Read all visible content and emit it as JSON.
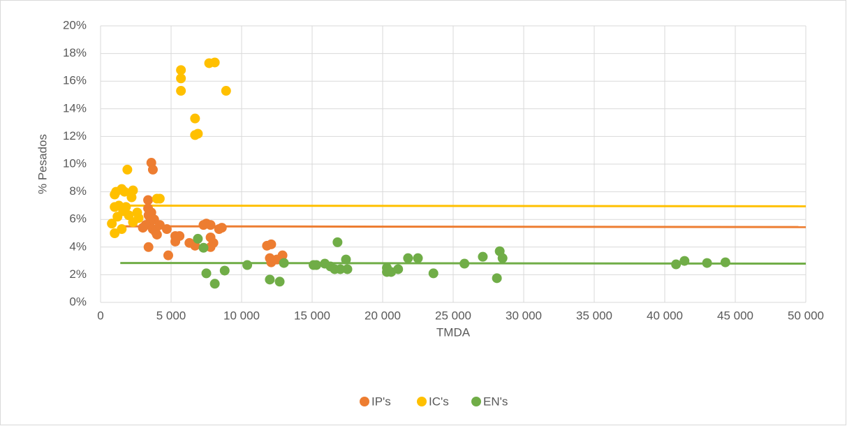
{
  "chart_data": {
    "type": "scatter",
    "xlabel": "TMDA",
    "ylabel": "% Pesados",
    "xlim": [
      0,
      50000
    ],
    "xticks": [
      0,
      {
        "value": 5000,
        "label": "5 000"
      },
      {
        "value": 10000,
        "label": "10 000"
      },
      {
        "value": 15000,
        "label": "15 000"
      },
      {
        "value": 20000,
        "label": "20 000"
      },
      {
        "value": 25000,
        "label": "25 000"
      },
      {
        "value": 30000,
        "label": "30 000"
      },
      {
        "value": 35000,
        "label": "35 000"
      },
      {
        "value": 40000,
        "label": "40 000"
      },
      {
        "value": 45000,
        "label": "45 000"
      },
      {
        "value": 50000,
        "label": "50 000"
      }
    ],
    "ylim": [
      0,
      20
    ],
    "yticks": [
      {
        "value": 0,
        "label": "0%"
      },
      {
        "value": 2,
        "label": "2%"
      },
      {
        "value": 4,
        "label": "4%"
      },
      {
        "value": 6,
        "label": "6%"
      },
      {
        "value": 8,
        "label": "8%"
      },
      {
        "value": 10,
        "label": "10%"
      },
      {
        "value": 12,
        "label": "12%"
      },
      {
        "value": 14,
        "label": "14%"
      },
      {
        "value": 16,
        "label": "16%"
      },
      {
        "value": 18,
        "label": "18%"
      },
      {
        "value": 20,
        "label": "20%"
      }
    ],
    "grid": true,
    "legend": "bottom",
    "series": [
      {
        "name": "IP's",
        "color": "#ed7d31",
        "x": [
          3600,
          3710,
          3370,
          3370,
          3500,
          3400,
          3600,
          3800,
          3500,
          3200,
          3000,
          3700,
          3900,
          4000,
          4200,
          4700,
          3400,
          4800,
          5300,
          5600,
          5300,
          6300,
          6700,
          7300,
          7500,
          7800,
          7800,
          8000,
          7800,
          8400,
          8600,
          11800,
          12100,
          12000,
          12100,
          12500,
          12900
        ],
        "values": [
          10.1,
          9.6,
          7.4,
          6.8,
          6.2,
          6.3,
          6.5,
          6.0,
          5.8,
          5.6,
          5.4,
          5.3,
          5.1,
          4.9,
          5.6,
          5.3,
          4.0,
          3.4,
          4.8,
          4.8,
          4.4,
          4.3,
          4.1,
          5.6,
          5.7,
          5.6,
          4.7,
          4.3,
          4.0,
          5.3,
          5.4,
          4.1,
          4.2,
          3.2,
          2.9,
          3.1,
          3.4
        ],
        "trend": {
          "x": [
            1400,
            50000
          ],
          "values": [
            5.5,
            5.45
          ]
        }
      },
      {
        "name": "IC's",
        "color": "#ffc000",
        "x": [
          5700,
          5700,
          5700,
          7700,
          8100,
          8900,
          6700,
          6700,
          6900,
          1900,
          1100,
          1500,
          1000,
          1700,
          2300,
          2200,
          1000,
          1300,
          1600,
          800,
          1000,
          1500,
          1200,
          2000,
          2300,
          2600,
          2700,
          4000,
          4200,
          1800
        ],
        "values": [
          16.8,
          16.2,
          15.3,
          17.3,
          17.35,
          15.3,
          13.3,
          12.1,
          12.2,
          9.6,
          8.0,
          8.2,
          7.8,
          8.0,
          8.1,
          7.6,
          6.9,
          7.0,
          6.6,
          5.7,
          5.0,
          5.3,
          6.2,
          6.3,
          5.8,
          6.5,
          6.1,
          7.5,
          7.5,
          6.9
        ],
        "trend": {
          "x": [
            1400,
            50000
          ],
          "values": [
            7.0,
            6.95
          ]
        }
      },
      {
        "name": "EN's",
        "color": "#70ad47",
        "x": [
          6900,
          7300,
          7500,
          8100,
          8800,
          10400,
          12000,
          12700,
          13000,
          15100,
          15300,
          15900,
          16300,
          16600,
          16800,
          17000,
          17400,
          17500,
          20300,
          20300,
          20600,
          21100,
          21800,
          22500,
          23600,
          25800,
          27100,
          28100,
          28300,
          28500,
          40800,
          41400,
          43000,
          44300
        ],
        "values": [
          4.6,
          3.95,
          2.1,
          1.35,
          2.3,
          2.7,
          1.65,
          1.5,
          2.85,
          2.7,
          2.7,
          2.8,
          2.6,
          2.4,
          4.35,
          2.4,
          3.1,
          2.4,
          2.5,
          2.2,
          2.2,
          2.4,
          3.2,
          3.2,
          2.1,
          2.8,
          3.3,
          1.75,
          3.7,
          3.2,
          2.75,
          3.0,
          2.85,
          2.9
        ],
        "trend": {
          "x": [
            1400,
            50000
          ],
          "values": [
            2.85,
            2.8
          ]
        }
      }
    ]
  }
}
